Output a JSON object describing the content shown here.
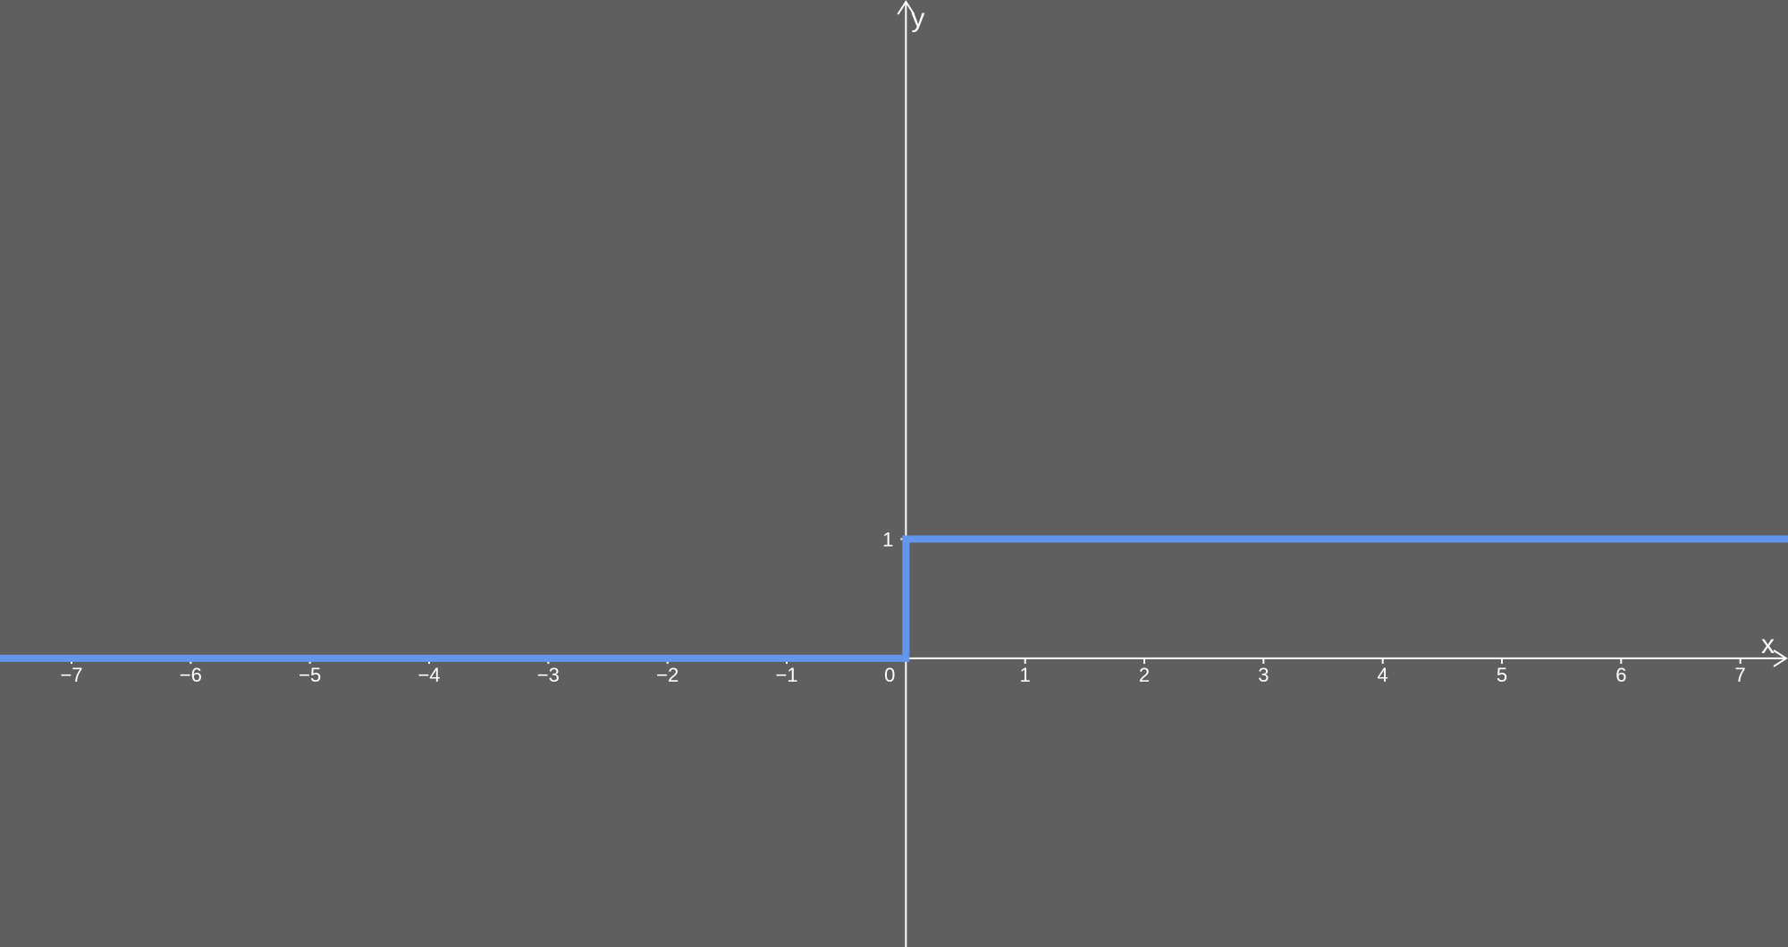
{
  "chart_data": {
    "type": "line",
    "title": "",
    "xlabel": "x",
    "ylabel": "y",
    "xlim": [
      -7.6,
      7.4
    ],
    "ylim": [
      -2.42,
      5.52
    ],
    "x_ticks": [
      -7,
      -6,
      -5,
      -4,
      -3,
      -2,
      -1,
      1,
      2,
      3,
      4,
      5,
      6,
      7
    ],
    "x_tick_labels": [
      "−7",
      "−6",
      "−5",
      "−4",
      "−3",
      "−2",
      "−1",
      "1",
      "2",
      "3",
      "4",
      "5",
      "6",
      "7"
    ],
    "y_ticks": [
      1
    ],
    "y_tick_labels": [
      "1"
    ],
    "origin_label": "0",
    "grid": false,
    "series": [
      {
        "x": [
          -7.6,
          0,
          0,
          7.4
        ],
        "y": [
          0,
          0,
          1,
          1
        ]
      }
    ]
  },
  "colors": {
    "background": "#5f5f5f",
    "axes": "#ffffff",
    "series": "#6495ed"
  }
}
